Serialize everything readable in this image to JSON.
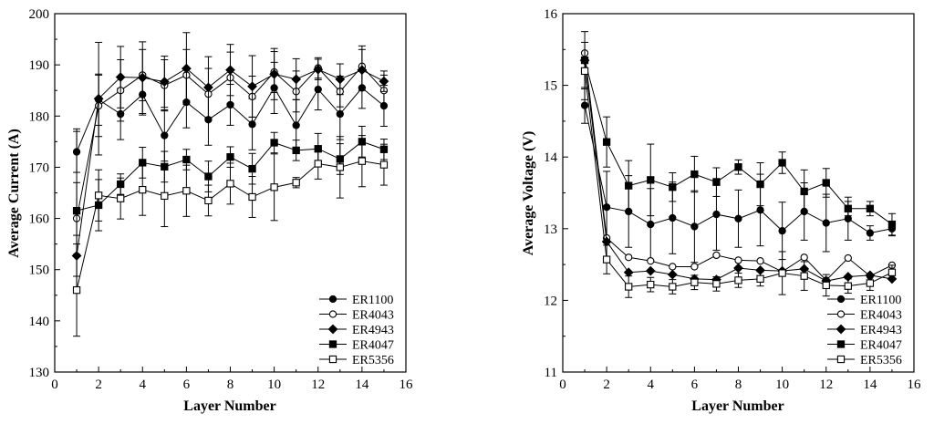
{
  "chart_data": [
    {
      "type": "line",
      "title": "",
      "xlabel": "Layer Number",
      "ylabel": "Average Current (A)",
      "xlim": [
        0,
        16
      ],
      "ylim": [
        130,
        200
      ],
      "x_ticks": [
        0,
        2,
        4,
        6,
        8,
        10,
        12,
        14,
        16
      ],
      "x_tick_labels": [
        "0",
        "2",
        "4",
        "6",
        "8",
        "10",
        "12",
        "14",
        "16"
      ],
      "y_ticks": [
        130,
        140,
        150,
        160,
        170,
        180,
        190,
        200
      ],
      "y_tick_labels": [
        "130",
        "140",
        "150",
        "160",
        "170",
        "180",
        "190",
        "200"
      ],
      "legend_position": "bottom-right",
      "x": [
        1,
        2,
        3,
        4,
        5,
        6,
        7,
        8,
        9,
        10,
        11,
        12,
        13,
        14,
        15
      ],
      "series": [
        {
          "name": "ER1100",
          "marker": "circle-filled",
          "values": [
            173.0,
            183.2,
            180.4,
            184.2,
            176.2,
            182.7,
            179.3,
            182.2,
            178.4,
            185.5,
            178.2,
            185.2,
            180.4,
            185.5,
            182.0
          ],
          "errors": [
            4.0,
            5.0,
            5.0,
            4.0,
            5.0,
            5.0,
            5.0,
            4.0,
            5.0,
            5.0,
            5.0,
            4.0,
            5.0,
            4.0,
            4.0
          ]
        },
        {
          "name": "ER4043",
          "marker": "circle-open",
          "values": [
            160.0,
            182.0,
            185.0,
            188.0,
            186.0,
            188.0,
            184.3,
            187.5,
            183.8,
            188.6,
            184.8,
            189.4,
            184.8,
            189.7,
            185.0
          ],
          "errors": [
            7.0,
            6.0,
            6.0,
            5.0,
            5.0,
            5.0,
            5.0,
            5.0,
            4.0,
            4.0,
            4.0,
            2.0,
            3.0,
            4.0,
            3.0
          ]
        },
        {
          "name": "ER4943",
          "marker": "diamond-filled",
          "values": [
            152.7,
            183.4,
            187.6,
            187.5,
            186.7,
            189.3,
            185.6,
            189.0,
            185.8,
            188.2,
            187.2,
            189.1,
            187.2,
            189.0,
            186.8
          ],
          "errors": [
            4.0,
            11.0,
            6.0,
            7.0,
            5.0,
            7.0,
            6.0,
            5.0,
            6.0,
            5.0,
            4.0,
            2.0,
            3.0,
            4.0,
            2.0
          ]
        },
        {
          "name": "ER4047",
          "marker": "square-filled",
          "values": [
            161.5,
            162.6,
            166.7,
            170.9,
            170.1,
            171.5,
            168.2,
            172.0,
            169.7,
            174.8,
            173.3,
            173.6,
            171.6,
            175.0,
            173.5
          ],
          "errors": [
            16.0,
            5.0,
            2.0,
            3.0,
            3.0,
            2.0,
            3.0,
            2.0,
            3.0,
            2.0,
            2.0,
            3.0,
            3.0,
            3.0,
            2.0
          ]
        },
        {
          "name": "ER5356",
          "marker": "square-open",
          "values": [
            146.0,
            164.5,
            163.9,
            165.6,
            164.4,
            165.4,
            163.5,
            166.8,
            164.2,
            166.1,
            167.0,
            170.7,
            170.0,
            171.2,
            170.5
          ],
          "errors": [
            9.0,
            5.0,
            4.0,
            5.0,
            6.0,
            5.0,
            3.0,
            4.0,
            4.0,
            6.5,
            1.0,
            3.0,
            6.0,
            5.0,
            4.0
          ]
        }
      ]
    },
    {
      "type": "line",
      "title": "",
      "xlabel": "Layer Number",
      "ylabel": "Average Voltage (V)",
      "xlim": [
        0,
        16
      ],
      "ylim": [
        11,
        16
      ],
      "x_ticks": [
        0,
        2,
        4,
        6,
        8,
        10,
        12,
        14,
        16
      ],
      "x_tick_labels": [
        "0",
        "2",
        "4",
        "6",
        "8",
        "10",
        "12",
        "14",
        "16"
      ],
      "y_ticks": [
        11,
        12,
        13,
        14,
        15,
        16
      ],
      "y_tick_labels": [
        "11",
        "12",
        "13",
        "14",
        "15",
        "16"
      ],
      "legend_position": "bottom-right",
      "x": [
        1,
        2,
        3,
        4,
        5,
        6,
        7,
        8,
        9,
        10,
        11,
        12,
        13,
        14,
        15
      ],
      "series": [
        {
          "name": "ER1100",
          "marker": "circle-filled",
          "values": [
            14.72,
            13.3,
            13.24,
            13.06,
            13.15,
            13.03,
            13.2,
            13.14,
            13.26,
            12.97,
            13.24,
            13.08,
            13.14,
            12.94,
            13.0
          ],
          "errors": [
            0.25,
            0.5,
            0.5,
            0.5,
            0.5,
            0.5,
            0.5,
            0.4,
            0.5,
            0.4,
            0.4,
            0.4,
            0.3,
            0.1,
            0.1
          ]
        },
        {
          "name": "ER4043",
          "marker": "circle-open",
          "values": [
            15.45,
            12.87,
            12.6,
            12.55,
            12.47,
            12.47,
            12.63,
            12.56,
            12.55,
            12.4,
            12.6,
            12.28,
            12.59,
            12.34,
            12.49
          ]
        },
        {
          "name": "ER4943",
          "marker": "diamond-filled",
          "values": [
            15.35,
            12.82,
            12.39,
            12.41,
            12.36,
            12.3,
            12.29,
            12.45,
            12.42,
            12.41,
            12.44,
            12.27,
            12.33,
            12.35,
            12.3
          ]
        },
        {
          "name": "ER4047",
          "marker": "square-filled",
          "values": [
            15.35,
            14.21,
            13.6,
            13.68,
            13.58,
            13.76,
            13.65,
            13.86,
            13.62,
            13.92,
            13.52,
            13.64,
            13.28,
            13.28,
            13.06
          ],
          "errors": [
            0.4,
            0.35,
            0.35,
            0.5,
            0.2,
            0.25,
            0.2,
            0.1,
            0.3,
            0.15,
            0.3,
            0.2,
            0.1,
            0.1,
            0.15
          ]
        },
        {
          "name": "ER5356",
          "marker": "square-open",
          "values": [
            15.2,
            12.57,
            12.19,
            12.22,
            12.19,
            12.25,
            12.23,
            12.28,
            12.3,
            12.38,
            12.34,
            12.21,
            12.2,
            12.24,
            12.39
          ],
          "errors": [
            0.4,
            0.2,
            0.15,
            0.1,
            0.1,
            0.1,
            0.1,
            0.1,
            0.1,
            0.3,
            0.2,
            0.15,
            0.1,
            0.1,
            0.1
          ]
        }
      ]
    }
  ]
}
